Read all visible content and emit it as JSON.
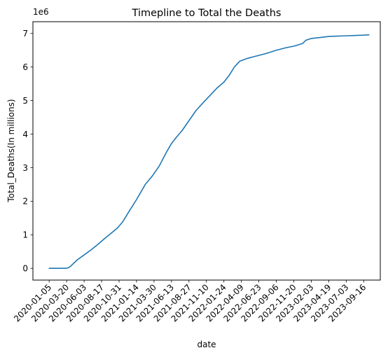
{
  "chart_data": {
    "type": "line",
    "title": "Timepline to Total the Deaths",
    "xlabel": "date",
    "ylabel": "Total_Deaths(In millions)",
    "offset_label": "1e6",
    "series_color": "#1f77b4",
    "x_ticks": [
      "2020-01-05",
      "2020-03-20",
      "2020-06-03",
      "2020-08-17",
      "2020-10-31",
      "2021-01-14",
      "2021-03-30",
      "2021-06-13",
      "2021-08-27",
      "2021-11-10",
      "2022-01-24",
      "2022-04-09",
      "2022-06-23",
      "2022-09-06",
      "2022-11-20",
      "2023-02-03",
      "2023-04-19",
      "2023-07-03",
      "2023-09-16"
    ],
    "y_ticks": [
      0,
      1,
      2,
      3,
      4,
      5,
      6,
      7
    ],
    "xlim": [
      -0.93,
      18.95
    ],
    "ylim": [
      -0.35,
      7.35
    ],
    "series": [
      {
        "name": "Total_Deaths",
        "x": [
          0,
          0.5,
          1,
          1.1,
          1.2,
          1.4,
          1.6,
          2.0,
          2.4,
          2.8,
          3.2,
          3.6,
          3.9,
          4.2,
          4.6,
          5.0,
          5.5,
          5.9,
          6.3,
          6.7,
          7.0,
          7.3,
          7.6,
          8.0,
          8.4,
          8.8,
          9.2,
          9.6,
          10.0,
          10.3,
          10.6,
          10.9,
          11.3,
          11.8,
          12.4,
          13.0,
          13.6,
          14.0,
          14.5,
          14.7,
          15.0,
          15.5,
          16.0,
          16.5,
          17.0,
          17.5,
          18.0,
          18.3
        ],
        "values": [
          0.0,
          0.001,
          0.003,
          0.02,
          0.05,
          0.15,
          0.25,
          0.4,
          0.55,
          0.72,
          0.9,
          1.07,
          1.2,
          1.38,
          1.72,
          2.05,
          2.5,
          2.75,
          3.05,
          3.45,
          3.72,
          3.92,
          4.1,
          4.4,
          4.7,
          4.93,
          5.15,
          5.37,
          5.55,
          5.75,
          6.0,
          6.17,
          6.25,
          6.32,
          6.4,
          6.5,
          6.58,
          6.62,
          6.7,
          6.8,
          6.85,
          6.88,
          6.91,
          6.92,
          6.93,
          6.94,
          6.95,
          6.96
        ]
      }
    ]
  }
}
